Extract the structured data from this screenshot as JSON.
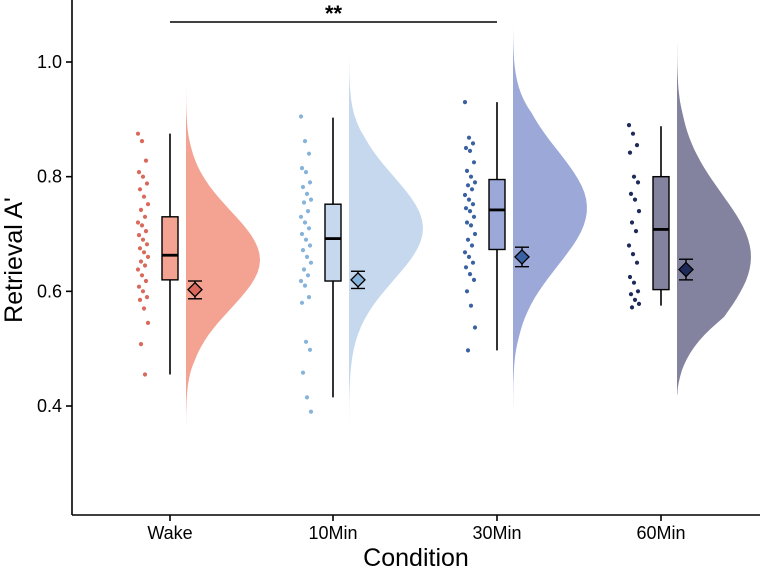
{
  "chart_data": {
    "type": "raincloud",
    "title": "",
    "xlabel": "Condition",
    "ylabel": "Retrieval A'",
    "ylim": [
      0.25,
      1.12
    ],
    "yticks": [
      0.4,
      0.6,
      0.8,
      1.0
    ],
    "ytick_labels": [
      "0.4",
      "0.6",
      "0.8",
      "1.0"
    ],
    "grid": false,
    "significance": {
      "from": "Wake",
      "to": "30Min",
      "label": "**"
    },
    "groups": [
      {
        "name": "Wake",
        "point_color": "#d9695a",
        "fill_color": "#f4a393",
        "box": {
          "min": 0.455,
          "q1": 0.62,
          "median": 0.663,
          "q3": 0.73,
          "max": 0.875
        },
        "mean": 0.603,
        "se_low": 0.587,
        "se_high": 0.618,
        "violin": {
          "low": 0.34,
          "high": 0.99,
          "peak": 0.655,
          "sigma": 0.085
        },
        "points": [
          0.875,
          0.862,
          0.828,
          0.808,
          0.8,
          0.788,
          0.778,
          0.765,
          0.752,
          0.742,
          0.73,
          0.72,
          0.715,
          0.705,
          0.698,
          0.69,
          0.682,
          0.675,
          0.668,
          0.66,
          0.652,
          0.645,
          0.638,
          0.628,
          0.618,
          0.608,
          0.6,
          0.59,
          0.585,
          0.57,
          0.545,
          0.508,
          0.455
        ]
      },
      {
        "name": "10Min",
        "point_color": "#86b3da",
        "fill_color": "#c6d8ee",
        "box": {
          "min": 0.415,
          "q1": 0.618,
          "median": 0.692,
          "q3": 0.752,
          "max": 0.903
        },
        "mean": 0.62,
        "se_low": 0.605,
        "se_high": 0.635,
        "violin": {
          "low": 0.25,
          "high": 1.04,
          "peak": 0.71,
          "sigma": 0.09
        },
        "points": [
          0.905,
          0.862,
          0.84,
          0.815,
          0.808,
          0.79,
          0.782,
          0.77,
          0.76,
          0.755,
          0.74,
          0.73,
          0.72,
          0.71,
          0.7,
          0.69,
          0.68,
          0.672,
          0.66,
          0.65,
          0.638,
          0.628,
          0.618,
          0.61,
          0.59,
          0.58,
          0.512,
          0.498,
          0.458,
          0.415,
          0.39
        ]
      },
      {
        "name": "30Min",
        "point_color": "#3a61a3",
        "fill_color": "#9ba8d8",
        "box": {
          "min": 0.497,
          "q1": 0.673,
          "median": 0.742,
          "q3": 0.795,
          "max": 0.93
        },
        "mean": 0.66,
        "se_low": 0.643,
        "se_high": 0.677,
        "violin": {
          "low": 0.37,
          "high": 1.06,
          "peak": 0.745,
          "sigma": 0.1
        },
        "points": [
          0.93,
          0.868,
          0.858,
          0.85,
          0.845,
          0.825,
          0.81,
          0.8,
          0.79,
          0.785,
          0.778,
          0.768,
          0.76,
          0.752,
          0.745,
          0.74,
          0.73,
          0.72,
          0.715,
          0.7,
          0.69,
          0.68,
          0.668,
          0.66,
          0.65,
          0.642,
          0.63,
          0.62,
          0.6,
          0.575,
          0.537,
          0.497
        ]
      },
      {
        "name": "60Min",
        "point_color": "#1e2a5a",
        "fill_color": "#83839f",
        "box": {
          "min": 0.575,
          "q1": 0.603,
          "median": 0.708,
          "q3": 0.8,
          "max": 0.888
        },
        "mean": 0.638,
        "se_low": 0.62,
        "se_high": 0.656,
        "violin": {
          "low": 0.42,
          "high": 1.045,
          "peak": 0.66,
          "sigma": 0.11
        },
        "points": [
          0.89,
          0.875,
          0.855,
          0.842,
          0.8,
          0.79,
          0.77,
          0.76,
          0.74,
          0.72,
          0.705,
          0.68,
          0.665,
          0.65,
          0.625,
          0.615,
          0.6,
          0.595,
          0.585,
          0.578,
          0.572
        ]
      }
    ]
  }
}
